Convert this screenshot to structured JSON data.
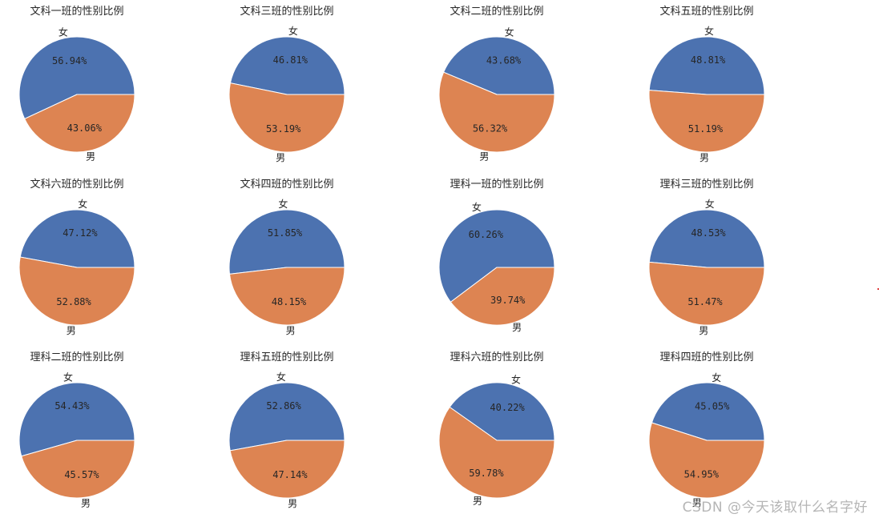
{
  "colors": {
    "female": "#4c72b0",
    "male": "#dd8452",
    "text": "#262626",
    "wedge_edge": "#ffffff"
  },
  "watermark": "CSDN @今天该取什么名字好",
  "chart_data": [
    {
      "type": "pie",
      "title": "文科一班的性别比例",
      "labels": [
        "女",
        "男"
      ],
      "values": [
        56.94,
        43.06
      ],
      "pct_labels": [
        "56.94%",
        "43.06%"
      ]
    },
    {
      "type": "pie",
      "title": "文科三班的性别比例",
      "labels": [
        "女",
        "男"
      ],
      "values": [
        46.81,
        53.19
      ],
      "pct_labels": [
        "46.81%",
        "53.19%"
      ]
    },
    {
      "type": "pie",
      "title": "文科二班的性别比例",
      "labels": [
        "女",
        "男"
      ],
      "values": [
        43.68,
        56.32
      ],
      "pct_labels": [
        "43.68%",
        "56.32%"
      ]
    },
    {
      "type": "pie",
      "title": "文科五班的性别比例",
      "labels": [
        "女",
        "男"
      ],
      "values": [
        48.81,
        51.19
      ],
      "pct_labels": [
        "48.81%",
        "51.19%"
      ]
    },
    {
      "type": "pie",
      "title": "文科六班的性别比例",
      "labels": [
        "女",
        "男"
      ],
      "values": [
        47.12,
        52.88
      ],
      "pct_labels": [
        "47.12%",
        "52.88%"
      ]
    },
    {
      "type": "pie",
      "title": "文科四班的性别比例",
      "labels": [
        "女",
        "男"
      ],
      "values": [
        51.85,
        48.15
      ],
      "pct_labels": [
        "51.85%",
        "48.15%"
      ]
    },
    {
      "type": "pie",
      "title": "理科一班的性别比例",
      "labels": [
        "女",
        "男"
      ],
      "values": [
        60.26,
        39.74
      ],
      "pct_labels": [
        "60.26%",
        "39.74%"
      ]
    },
    {
      "type": "pie",
      "title": "理科三班的性别比例",
      "labels": [
        "女",
        "男"
      ],
      "values": [
        48.53,
        51.47
      ],
      "pct_labels": [
        "48.53%",
        "51.47%"
      ]
    },
    {
      "type": "pie",
      "title": "理科二班的性别比例",
      "labels": [
        "女",
        "男"
      ],
      "values": [
        54.43,
        45.57
      ],
      "pct_labels": [
        "54.43%",
        "45.57%"
      ]
    },
    {
      "type": "pie",
      "title": "理科五班的性别比例",
      "labels": [
        "女",
        "男"
      ],
      "values": [
        52.86,
        47.14
      ],
      "pct_labels": [
        "52.86%",
        "47.14%"
      ]
    },
    {
      "type": "pie",
      "title": "理科六班的性别比例",
      "labels": [
        "女",
        "男"
      ],
      "values": [
        40.22,
        59.78
      ],
      "pct_labels": [
        "40.22%",
        "59.78%"
      ]
    },
    {
      "type": "pie",
      "title": "理科四班的性别比例",
      "labels": [
        "女",
        "男"
      ],
      "values": [
        45.05,
        54.95
      ],
      "pct_labels": [
        "45.05%",
        "54.95%"
      ]
    }
  ]
}
